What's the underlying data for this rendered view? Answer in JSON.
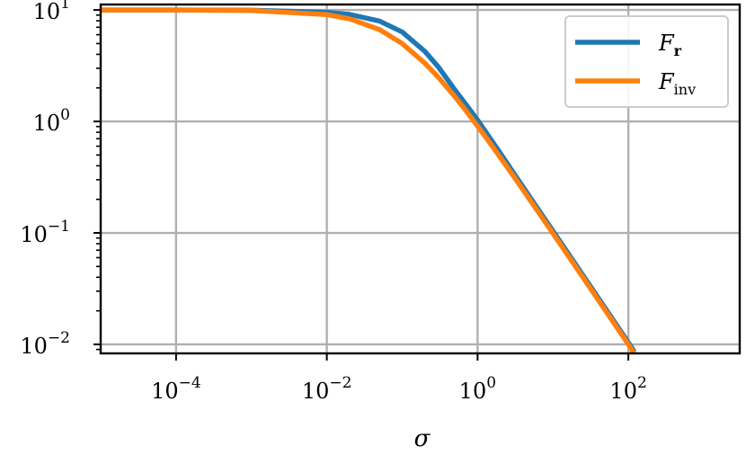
{
  "chart_data": {
    "type": "line",
    "xscale": "log",
    "yscale": "log",
    "xlim": [
      1e-05,
      3000
    ],
    "ylim": [
      0.0083,
      11.2
    ],
    "grid": true,
    "legend_position": "top-right",
    "xlabel": "σ",
    "ylabel": "",
    "title": "",
    "xticks": [
      {
        "value": 0.0001,
        "base": "10",
        "exp": "−4"
      },
      {
        "value": 0.01,
        "base": "10",
        "exp": "−2"
      },
      {
        "value": 1,
        "base": "10",
        "exp": "0"
      },
      {
        "value": 100,
        "base": "10",
        "exp": "2"
      }
    ],
    "yticks": [
      {
        "value": 10,
        "base": "10",
        "exp": "1"
      },
      {
        "value": 1,
        "base": "10",
        "exp": "0"
      },
      {
        "value": 0.1,
        "base": "10",
        "exp": "−1"
      },
      {
        "value": 0.01,
        "base": "10",
        "exp": "−2"
      }
    ],
    "series": [
      {
        "name": "F_r",
        "label_base": "F",
        "label_sub": "r",
        "color": "#1f77b4",
        "x": [
          1e-05,
          0.0001,
          0.001,
          0.01,
          0.02,
          0.05,
          0.1,
          0.2,
          0.3,
          0.5,
          0.7,
          1,
          1.5,
          2,
          3,
          5,
          7,
          10,
          20,
          50,
          100,
          120
        ],
        "y": [
          10,
          9.99,
          9.95,
          9.55,
          9.13,
          7.95,
          6.35,
          4.25,
          3.1,
          1.92,
          1.42,
          1.03,
          0.69,
          0.52,
          0.345,
          0.207,
          0.148,
          0.104,
          0.052,
          0.0208,
          0.0104,
          0.0086
        ]
      },
      {
        "name": "F_inv",
        "label_base": "F",
        "label_sub": "inv",
        "color": "#ff7f0e",
        "x": [
          1e-05,
          0.0001,
          0.001,
          0.01,
          0.02,
          0.05,
          0.1,
          0.2,
          0.3,
          0.5,
          0.7,
          1,
          1.5,
          2,
          3,
          5,
          7,
          10,
          20,
          50,
          100,
          120
        ],
        "y": [
          10,
          9.99,
          9.9,
          9.09,
          8.33,
          6.67,
          5.0,
          3.33,
          2.5,
          1.67,
          1.25,
          0.909,
          0.625,
          0.476,
          0.323,
          0.196,
          0.141,
          0.099,
          0.0498,
          0.02,
          0.01,
          0.0083
        ]
      }
    ]
  }
}
